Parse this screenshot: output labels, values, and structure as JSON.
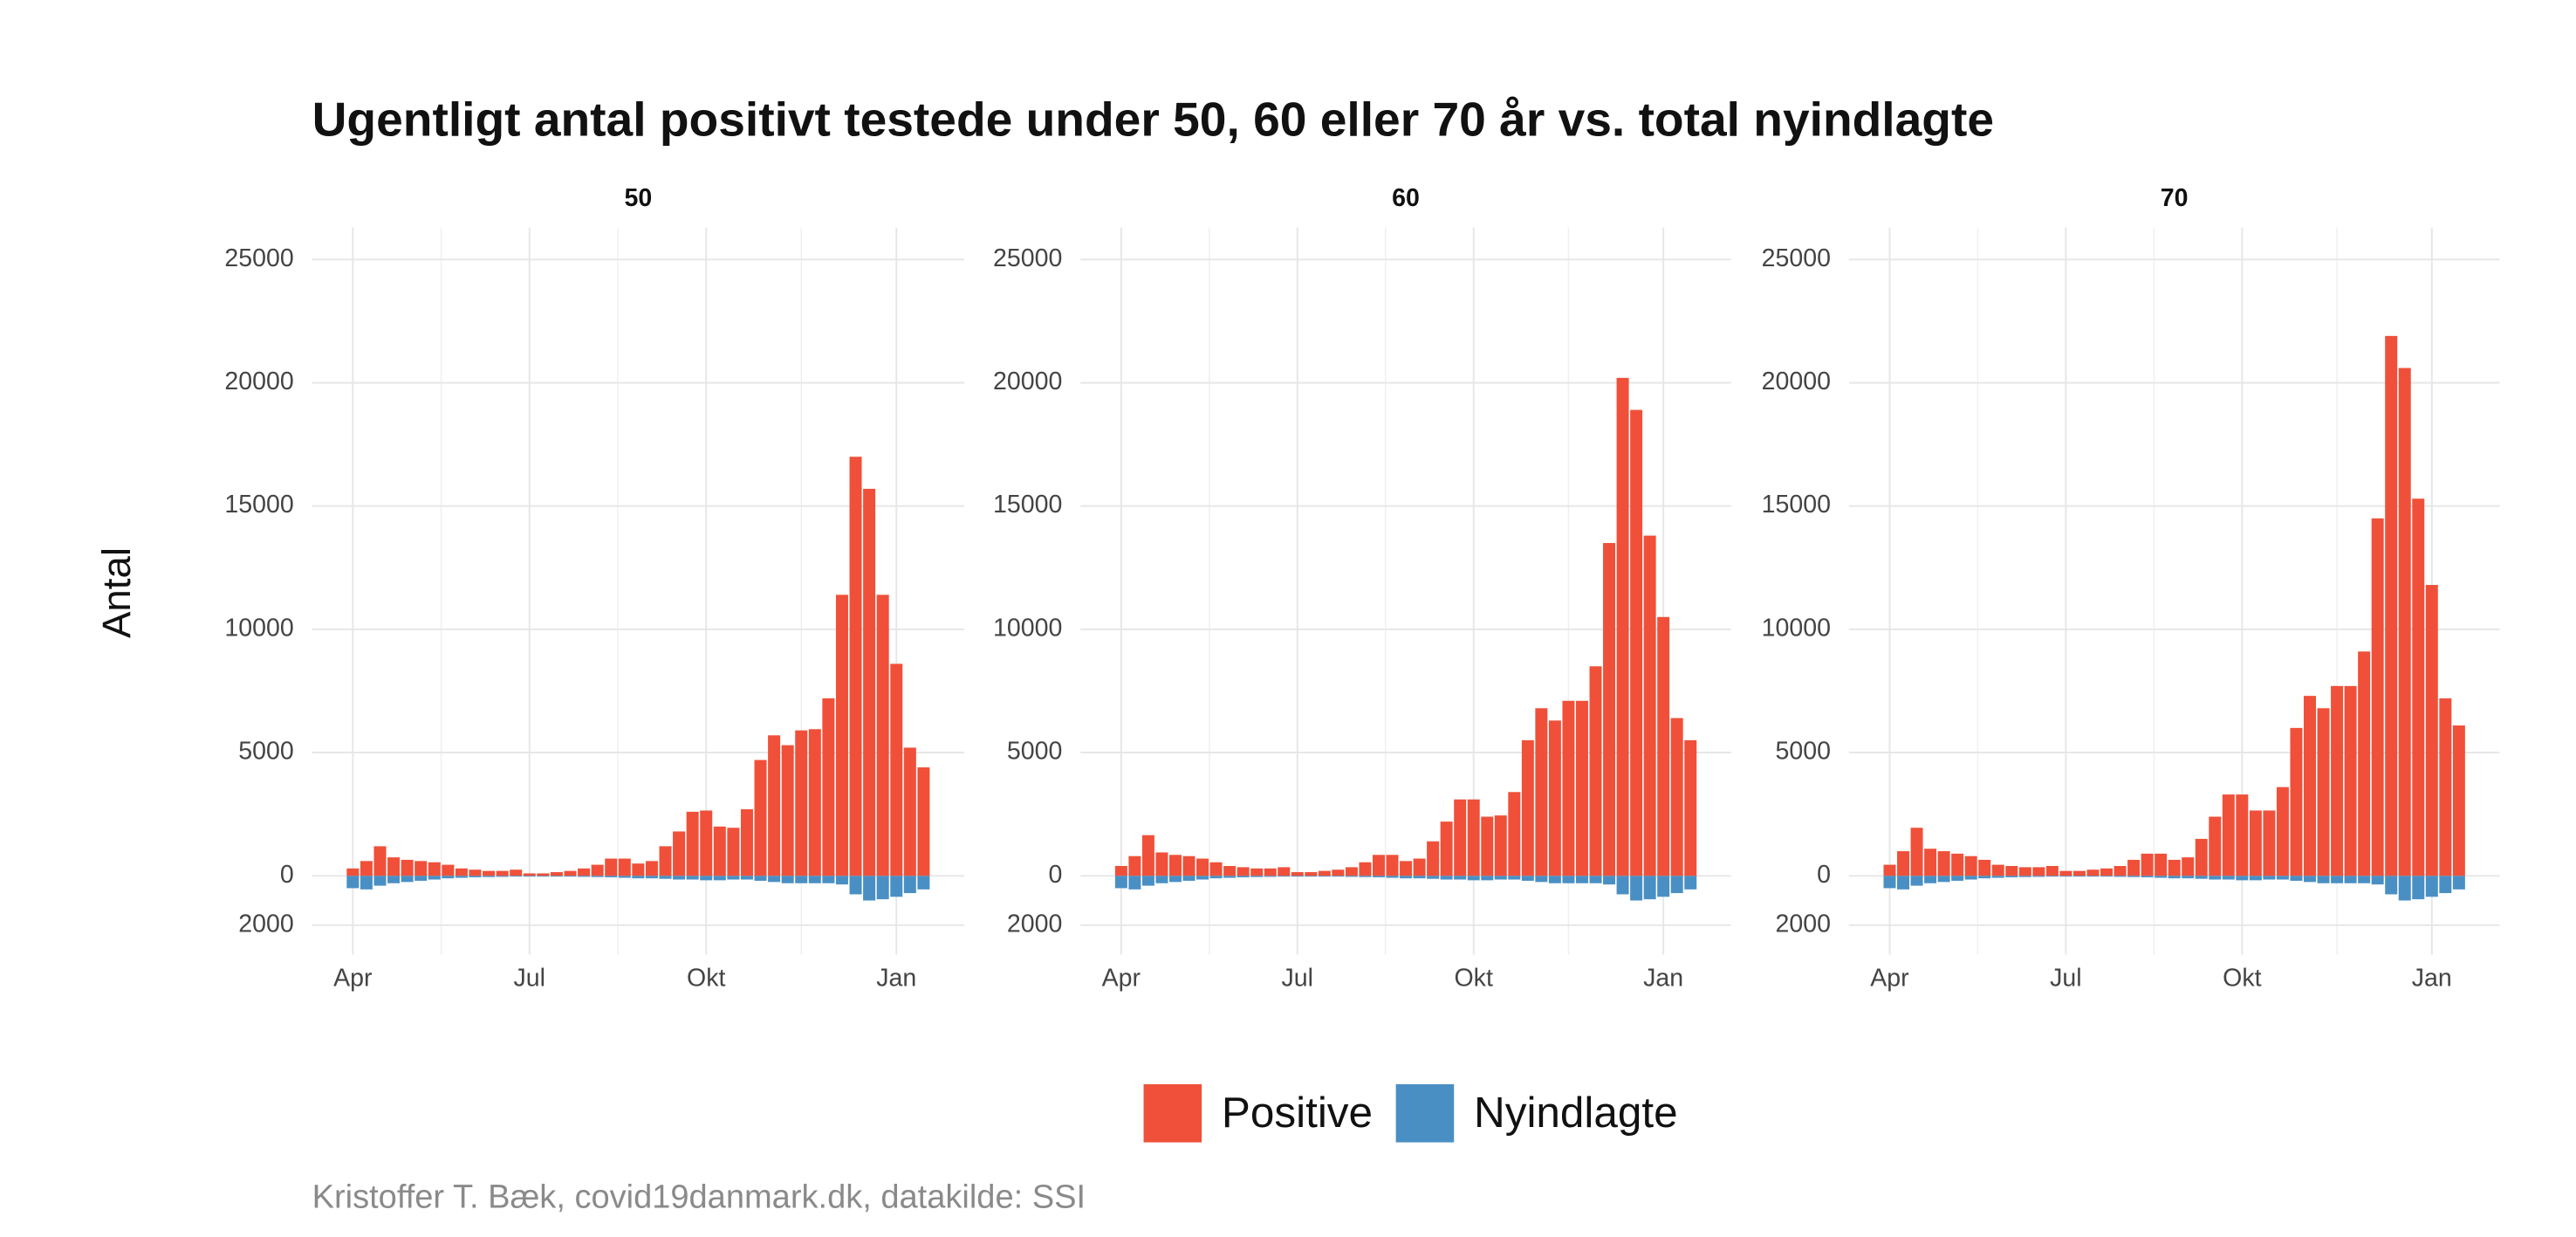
{
  "title": "Ugentligt antal positivt testede under 50, 60 eller 70 år vs. total nyindlagte",
  "y_label": "Antal",
  "caption": "Kristoffer T. Bæk, covid19danmark.dk, datakilde: SSI",
  "chart_data": [
    {
      "type": "bar",
      "stacked": true,
      "title": "50",
      "categories": [
        "Apr",
        null,
        null,
        null,
        null,
        null,
        null,
        null,
        null,
        null,
        null,
        null,
        null,
        "Jul",
        null,
        null,
        null,
        null,
        null,
        null,
        null,
        null,
        null,
        null,
        null,
        null,
        "Okt",
        null,
        null,
        null,
        null,
        null,
        null,
        null,
        null,
        null,
        null,
        null,
        null,
        null,
        "Jan",
        null,
        null
      ],
      "series": [
        {
          "name": "Positive",
          "color": "#f05039",
          "values": [
            300,
            600,
            1200,
            750,
            650,
            600,
            550,
            450,
            300,
            250,
            200,
            200,
            250,
            100,
            100,
            150,
            200,
            300,
            450,
            700,
            700,
            500,
            600,
            1200,
            1800,
            2600,
            2650,
            2000,
            1950,
            2700,
            4700,
            5700,
            5300,
            5900,
            5950,
            7200,
            11400,
            17000,
            15700,
            11400,
            8600,
            5200,
            4400
          ]
        },
        {
          "name": "Nyindlagte",
          "color": "#4a8fc4",
          "values": [
            -500,
            -550,
            -400,
            -300,
            -250,
            -200,
            -150,
            -100,
            -80,
            -60,
            -50,
            -40,
            -30,
            -30,
            -30,
            -30,
            -30,
            -40,
            -50,
            -60,
            -80,
            -100,
            -100,
            -120,
            -150,
            -150,
            -180,
            -180,
            -150,
            -150,
            -200,
            -250,
            -300,
            -300,
            -300,
            -300,
            -350,
            -750,
            -1000,
            -950,
            -850,
            -700,
            -550
          ]
        }
      ],
      "ylim": [
        -3200,
        26300
      ],
      "yticks": [
        {
          "value": -2000,
          "label": "2000"
        },
        0,
        5000,
        10000,
        15000,
        20000,
        25000
      ],
      "grid": true
    },
    {
      "type": "bar",
      "stacked": true,
      "title": "60",
      "categories": [
        "Apr",
        null,
        null,
        null,
        null,
        null,
        null,
        null,
        null,
        null,
        null,
        null,
        null,
        "Jul",
        null,
        null,
        null,
        null,
        null,
        null,
        null,
        null,
        null,
        null,
        null,
        null,
        "Okt",
        null,
        null,
        null,
        null,
        null,
        null,
        null,
        null,
        null,
        null,
        null,
        null,
        null,
        "Jan",
        null,
        null
      ],
      "series": [
        {
          "name": "Positive",
          "color": "#f05039",
          "values": [
            400,
            800,
            1650,
            950,
            850,
            800,
            700,
            550,
            400,
            350,
            300,
            300,
            350,
            150,
            150,
            200,
            250,
            350,
            550,
            850,
            850,
            600,
            700,
            1400,
            2200,
            3100,
            3100,
            2400,
            2450,
            3400,
            5500,
            6800,
            6300,
            7100,
            7100,
            8500,
            13500,
            20200,
            18900,
            13800,
            10500,
            6400,
            5500
          ]
        },
        {
          "name": "Nyindlagte",
          "color": "#4a8fc4",
          "values": [
            -500,
            -550,
            -400,
            -300,
            -250,
            -200,
            -150,
            -100,
            -80,
            -60,
            -50,
            -40,
            -30,
            -30,
            -30,
            -30,
            -30,
            -40,
            -50,
            -60,
            -80,
            -100,
            -100,
            -120,
            -150,
            -150,
            -180,
            -180,
            -150,
            -150,
            -200,
            -250,
            -300,
            -300,
            -300,
            -300,
            -350,
            -750,
            -1000,
            -950,
            -850,
            -700,
            -550
          ]
        }
      ],
      "ylim": [
        -3200,
        26300
      ],
      "yticks": [
        {
          "value": -2000,
          "label": "2000"
        },
        0,
        5000,
        10000,
        15000,
        20000,
        25000
      ],
      "grid": true
    },
    {
      "type": "bar",
      "stacked": true,
      "title": "70",
      "categories": [
        "Apr",
        null,
        null,
        null,
        null,
        null,
        null,
        null,
        null,
        null,
        null,
        null,
        null,
        "Jul",
        null,
        null,
        null,
        null,
        null,
        null,
        null,
        null,
        null,
        null,
        null,
        null,
        "Okt",
        null,
        null,
        null,
        null,
        null,
        null,
        null,
        null,
        null,
        null,
        null,
        null,
        null,
        "Jan",
        null,
        null
      ],
      "series": [
        {
          "name": "Positive",
          "color": "#f05039",
          "values": [
            450,
            1000,
            1950,
            1100,
            1000,
            900,
            800,
            650,
            450,
            400,
            350,
            350,
            400,
            200,
            200,
            250,
            300,
            400,
            650,
            900,
            900,
            650,
            750,
            1500,
            2400,
            3300,
            3300,
            2650,
            2650,
            3600,
            6000,
            7300,
            6800,
            7700,
            7700,
            9100,
            14500,
            21900,
            20600,
            15300,
            11800,
            7200,
            6100
          ]
        },
        {
          "name": "Nyindlagte",
          "color": "#4a8fc4",
          "values": [
            -500,
            -550,
            -400,
            -300,
            -250,
            -200,
            -150,
            -100,
            -80,
            -60,
            -50,
            -40,
            -30,
            -30,
            -30,
            -30,
            -30,
            -40,
            -50,
            -60,
            -80,
            -100,
            -100,
            -120,
            -150,
            -150,
            -180,
            -180,
            -150,
            -150,
            -200,
            -250,
            -300,
            -300,
            -300,
            -300,
            -350,
            -750,
            -1000,
            -950,
            -850,
            -700,
            -550
          ]
        }
      ],
      "ylim": [
        -3200,
        26300
      ],
      "yticks": [
        {
          "value": -2000,
          "label": "2000"
        },
        0,
        5000,
        10000,
        15000,
        20000,
        25000
      ],
      "grid": true
    }
  ]
}
